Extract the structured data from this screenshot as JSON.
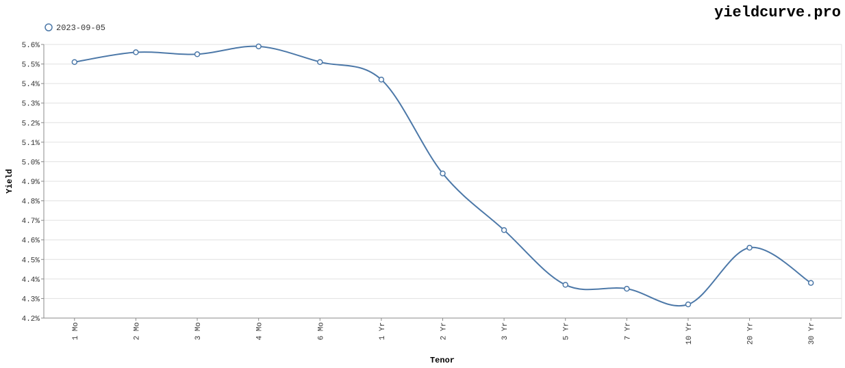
{
  "chart_data": {
    "type": "line",
    "title": "yieldcurve.pro",
    "x_label": "Tenor",
    "y_label": "Yield",
    "categories": [
      "1 Mo",
      "2 Mo",
      "3 Mo",
      "4 Mo",
      "6 Mo",
      "1 Yr",
      "2 Yr",
      "3 Yr",
      "5 Yr",
      "7 Yr",
      "10 Yr",
      "20 Yr",
      "30 Yr"
    ],
    "series": [
      {
        "name": "2023-09-05",
        "color": "#4c78a8",
        "values": [
          5.51,
          5.56,
          5.55,
          5.59,
          5.51,
          5.42,
          4.94,
          4.65,
          4.37,
          4.35,
          4.27,
          4.56,
          4.38
        ]
      }
    ],
    "ylim": [
      4.2,
      5.6
    ],
    "yticks": [
      {
        "value": 4.2,
        "label": "4.2%"
      },
      {
        "value": 4.3,
        "label": "4.3%"
      },
      {
        "value": 4.4,
        "label": "4.4%"
      },
      {
        "value": 4.5,
        "label": "4.5%"
      },
      {
        "value": 4.6,
        "label": "4.6%"
      },
      {
        "value": 4.7,
        "label": "4.7%"
      },
      {
        "value": 4.8,
        "label": "4.8%"
      },
      {
        "value": 4.9,
        "label": "4.9%"
      },
      {
        "value": 5.0,
        "label": "5.0%"
      },
      {
        "value": 5.1,
        "label": "5.1%"
      },
      {
        "value": 5.2,
        "label": "5.2%"
      },
      {
        "value": 5.3,
        "label": "5.3%"
      },
      {
        "value": 5.4,
        "label": "5.4%"
      },
      {
        "value": 5.5,
        "label": "5.5%"
      },
      {
        "value": 5.6,
        "label": "5.6%"
      }
    ],
    "grid": true
  }
}
